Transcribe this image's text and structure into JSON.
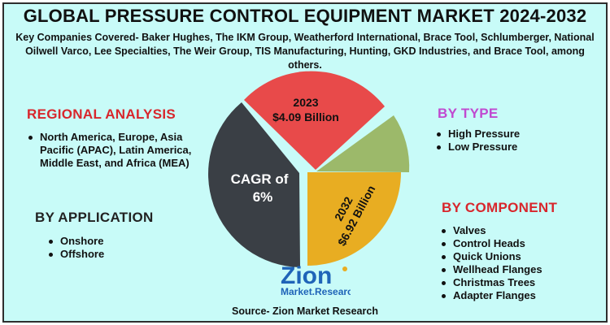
{
  "title": "GLOBAL PRESSURE CONTROL EQUIPMENT MARKET 2024-2032",
  "subtitle": "Key Companies Covered- Baker Hughes, The IKM Group, Weatherford International, Brace Tool, Schlumberger, National Oilwell Varco, Lee Specialties, The Weir Group, TIS Manufacturing, Hunting, GKD Industries, and Brace Tool, among others.",
  "regional": {
    "heading": "REGIONAL ANALYSIS",
    "items": [
      "North America, Europe, Asia Pacific (APAC), Latin America, Middle East, and Africa (MEA)"
    ]
  },
  "application": {
    "heading": "BY APPLICATION",
    "items": [
      "Onshore",
      "Offshore"
    ]
  },
  "type": {
    "heading": "BY TYPE",
    "items": [
      "High Pressure",
      "Low Pressure"
    ]
  },
  "component": {
    "heading": "BY COMPONENT",
    "items": [
      "Valves",
      "Control Heads",
      "Quick Unions",
      "Wellhead Flanges",
      "Christmas Trees",
      "Adapter Flanges"
    ]
  },
  "pie": {
    "red": {
      "year": "2023",
      "value": "$4.09 Billion",
      "color": "#e84a4a"
    },
    "dark": {
      "line1": "CAGR of",
      "line2": "6%",
      "color": "#3a3f45"
    },
    "yellow": {
      "year": "2032",
      "value": "$6.92 Billion",
      "color": "#e8ad22"
    },
    "green": {
      "color": "#9cb96a"
    }
  },
  "logo": {
    "brand": "Zion",
    "tagline": "Market.Research.",
    "accent": "#1f64b8"
  },
  "source": "Source- Zion Market Research"
}
